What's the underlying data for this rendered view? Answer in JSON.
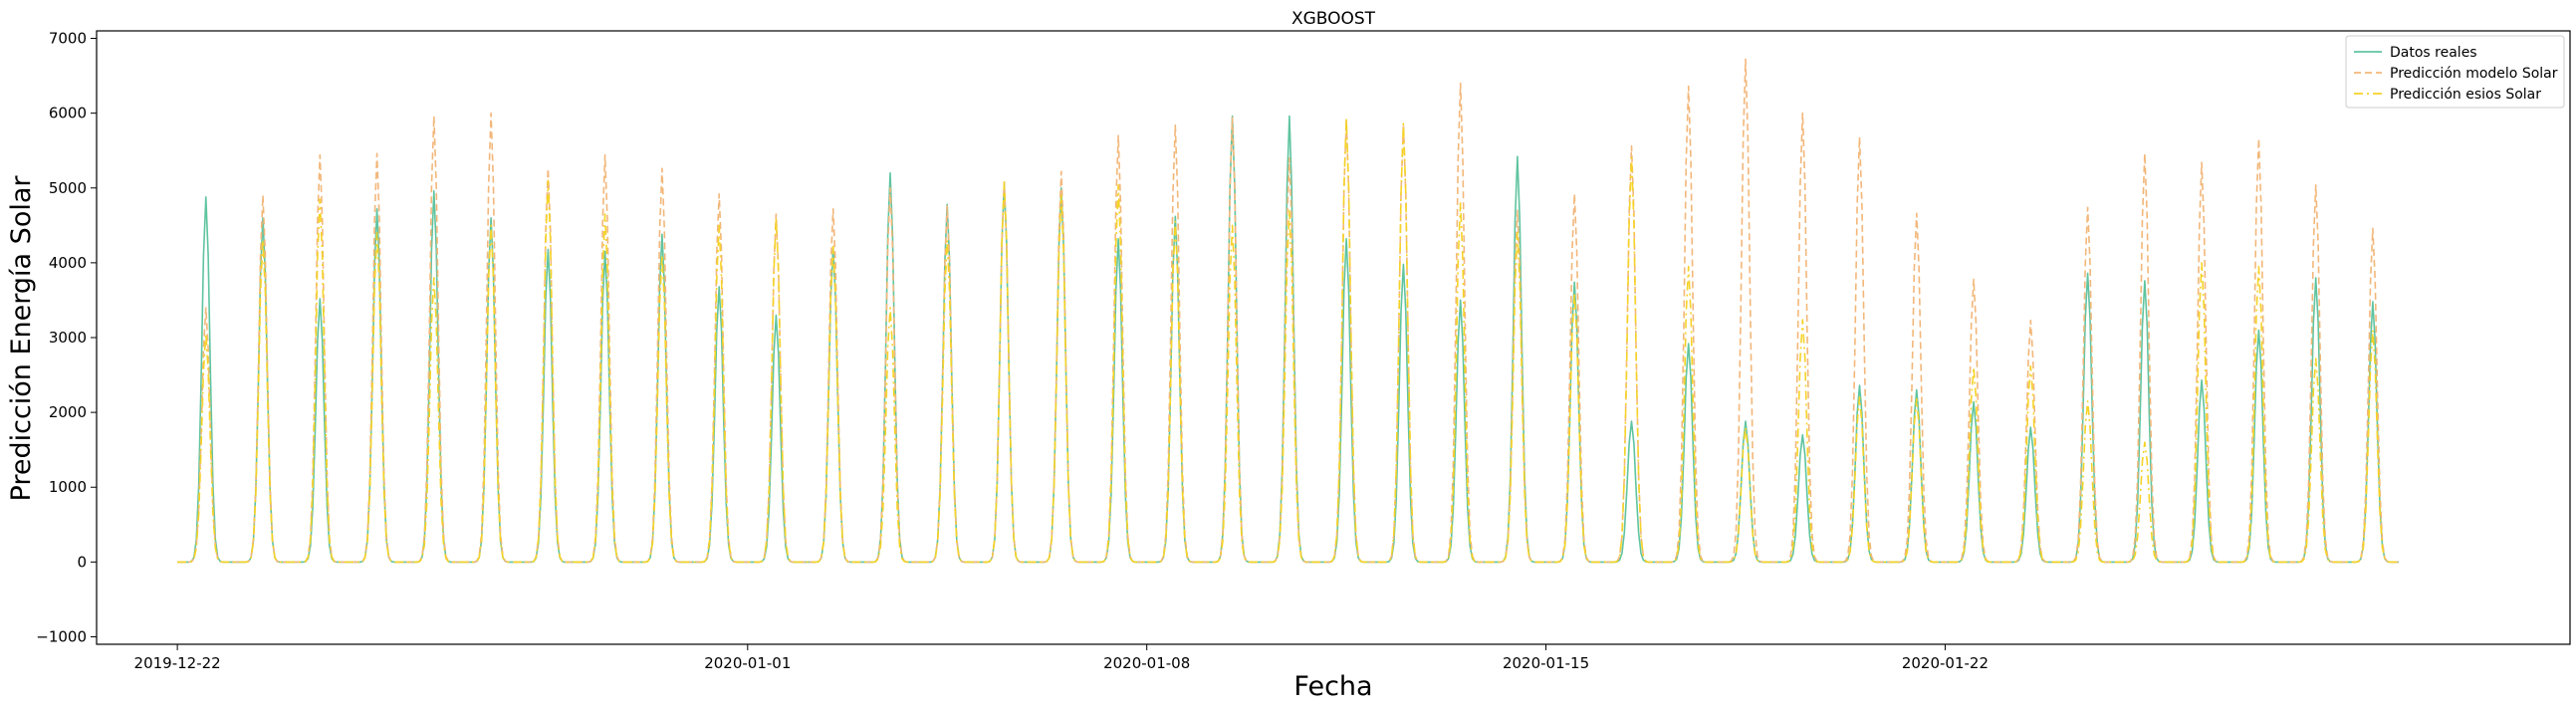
{
  "chart_data": {
    "type": "line",
    "title": "XGBOOST",
    "xlabel": "Fecha",
    "ylabel": "Predicción Energía Solar",
    "xlim": [
      "2019-12-20 14:00",
      "2020-02-01 23:00"
    ],
    "ylim": [
      -1100,
      7100
    ],
    "xticks": [
      "2019-12-22",
      "2020-01-01",
      "2020-01-08",
      "2020-01-15",
      "2020-01-22"
    ],
    "yticks": [
      -1000,
      0,
      1000,
      2000,
      3000,
      4000,
      5000,
      6000,
      7000
    ],
    "grid": false,
    "legend_position": "top-right",
    "x_start": "2019-12-22",
    "peak_hour": "12:00",
    "series": [
      {
        "name": "Datos reales",
        "color": "#5fc4a0",
        "style": "solid",
        "daily_peak_values": [
          4880,
          4600,
          3520,
          4720,
          4960,
          4600,
          4180,
          4150,
          4380,
          3680,
          3300,
          4200,
          5200,
          4780,
          5060,
          5000,
          4320,
          4620,
          5960,
          5960,
          4320,
          3980,
          3500,
          5420,
          3740,
          1880,
          2920,
          1880,
          1700,
          2360,
          2300,
          2140,
          1800,
          3860,
          3760,
          2430,
          3100,
          3800,
          3480
        ]
      },
      {
        "name": "Predicción modelo Solar",
        "color": "#f2b77a",
        "style": "dashed",
        "daily_peak_values": [
          3400,
          4900,
          5440,
          5460,
          5960,
          6000,
          5260,
          5440,
          5260,
          4920,
          4650,
          4720,
          5000,
          4760,
          5080,
          5220,
          5700,
          5840,
          5940,
          5400,
          5900,
          5850,
          6400,
          4700,
          4920,
          5560,
          6360,
          6720,
          6000,
          5680,
          4660,
          3780,
          3230,
          4740,
          5460,
          5340,
          5660,
          5040,
          4460
        ]
      },
      {
        "name": "Predicción esios Solar",
        "color": "#f5d327",
        "style": "dashdot",
        "daily_peak_values": [
          3050,
          4300,
          4850,
          4400,
          3800,
          4500,
          5100,
          4650,
          4100,
          4500,
          4600,
          4220,
          3400,
          4300,
          5080,
          4900,
          5040,
          4550,
          4500,
          4700,
          5940,
          5860,
          4800,
          4400,
          3600,
          5400,
          3950,
          1800,
          3240,
          2200,
          2180,
          2600,
          2620,
          2150,
          1600,
          4000,
          3950,
          2720,
          3100
        ]
      }
    ]
  }
}
